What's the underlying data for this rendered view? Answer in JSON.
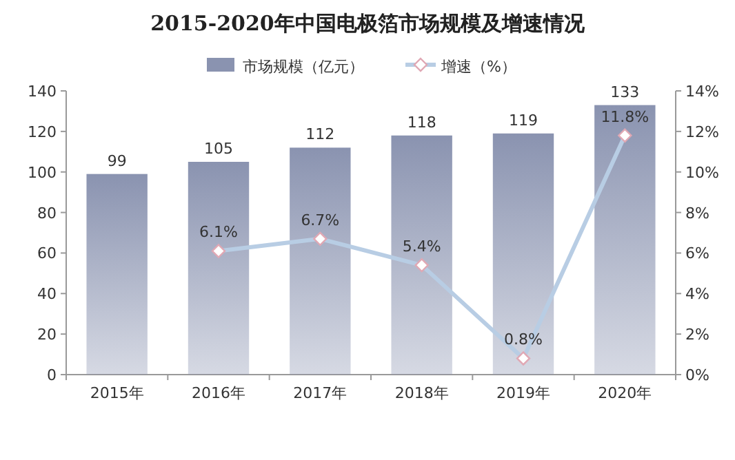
{
  "chart_data": {
    "type": "bar",
    "title": "2015-2020年中国电极箔市场规模及增速情况",
    "categories": [
      "2015年",
      "2016年",
      "2017年",
      "2018年",
      "2019年",
      "2020年"
    ],
    "series": [
      {
        "name": "市场规模（亿元）",
        "color": "#8a93b0",
        "values": [
          99,
          105,
          112,
          118,
          119,
          133
        ],
        "value_labels": [
          "99",
          "105",
          "112",
          "118",
          "119",
          "133"
        ]
      },
      {
        "name": "增速（%）",
        "type": "line",
        "axis": "y2",
        "color": "#b8cde4",
        "values": [
          null,
          6.1,
          6.7,
          5.4,
          0.8,
          11.8
        ],
        "value_labels": [
          null,
          "6.1%",
          "6.7%",
          "5.4%",
          "0.8%",
          "11.8%"
        ]
      }
    ],
    "ylim": [
      0,
      140
    ],
    "yticks": [
      0,
      20,
      40,
      60,
      80,
      100,
      120,
      140
    ],
    "y2lim": [
      0,
      14
    ],
    "y2ticks": [
      {
        "value": 0,
        "label": "0%"
      },
      {
        "value": 2,
        "label": "2%"
      },
      {
        "value": 4,
        "label": "4%"
      },
      {
        "value": 6,
        "label": "6%"
      },
      {
        "value": 8,
        "label": "8%"
      },
      {
        "value": 10,
        "label": "10%"
      },
      {
        "value": 12,
        "label": "12%"
      },
      {
        "value": 14,
        "label": "14%"
      }
    ],
    "legend": "top",
    "marker": "diamond"
  }
}
